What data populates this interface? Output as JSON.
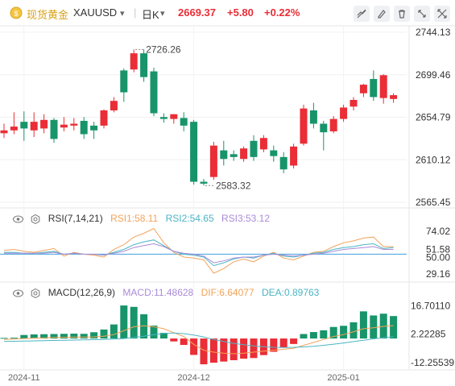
{
  "header": {
    "title": "现货黄金",
    "symbol": "XAUUSD",
    "symbol_dropdown": "▾",
    "period": "日K",
    "period_dropdown": "▾",
    "price": "2669.37",
    "change": "+5.80",
    "change_pct": "+0.22%"
  },
  "colors": {
    "up": "#ea2d36",
    "down": "#18946a",
    "blue_line": "#57a9e0",
    "orange_line": "#f3a35b",
    "purple_line": "#a98bd8"
  },
  "rsi": {
    "title": "RSI(7,14,21)",
    "rsi1": "RSI1:58.11",
    "rsi2": "RSI2:54.65",
    "rsi3": "RSI3:53.12"
  },
  "macd": {
    "title": "MACD(12,26,9)",
    "macd": "MACD:11.48628",
    "dif": "DIF:6.64077",
    "dea": "DEA:0.89763"
  },
  "chart_data": [
    {
      "type": "candlestick",
      "title": "",
      "y_ticks": [
        "2744.13",
        "2699.46",
        "2654.79",
        "2610.12",
        "2565.45"
      ],
      "ylim": [
        2565.45,
        2744.13
      ],
      "annotations": {
        "high": "2726.26",
        "low": "2583.32"
      },
      "x_ticks": [
        "2024-11",
        "2024-12",
        "2025-01"
      ],
      "candles": [
        {
          "o": 2638,
          "h": 2648,
          "c": 2641,
          "l": 2633
        },
        {
          "o": 2641,
          "h": 2660,
          "c": 2645,
          "l": 2637
        },
        {
          "o": 2650,
          "h": 2661,
          "c": 2643,
          "l": 2630
        },
        {
          "o": 2641,
          "h": 2660,
          "c": 2650,
          "l": 2634
        },
        {
          "o": 2643,
          "h": 2658,
          "c": 2652,
          "l": 2638
        },
        {
          "o": 2652,
          "h": 2654,
          "c": 2632,
          "l": 2628
        },
        {
          "o": 2644,
          "h": 2655,
          "c": 2647,
          "l": 2640
        },
        {
          "o": 2646,
          "h": 2654,
          "c": 2648,
          "l": 2641
        },
        {
          "o": 2651,
          "h": 2655,
          "c": 2637,
          "l": 2632
        },
        {
          "o": 2646,
          "h": 2650,
          "c": 2641,
          "l": 2632
        },
        {
          "o": 2646,
          "h": 2663,
          "c": 2662,
          "l": 2643
        },
        {
          "o": 2662,
          "h": 2676,
          "c": 2672,
          "l": 2660
        },
        {
          "o": 2704,
          "h": 2706,
          "c": 2681,
          "l": 2671
        },
        {
          "o": 2705,
          "h": 2726,
          "c": 2722,
          "l": 2702
        },
        {
          "o": 2722,
          "h": 2726,
          "c": 2697,
          "l": 2692
        },
        {
          "o": 2703,
          "h": 2707,
          "c": 2659,
          "l": 2656
        },
        {
          "o": 2655,
          "h": 2659,
          "c": 2653,
          "l": 2649
        },
        {
          "o": 2653,
          "h": 2658,
          "c": 2658,
          "l": 2648
        },
        {
          "o": 2654,
          "h": 2660,
          "c": 2646,
          "l": 2640
        },
        {
          "o": 2650,
          "h": 2652,
          "c": 2587,
          "l": 2584
        },
        {
          "o": 2587,
          "h": 2590,
          "c": 2585,
          "l": 2583
        },
        {
          "o": 2592,
          "h": 2629,
          "c": 2625,
          "l": 2589
        },
        {
          "o": 2620,
          "h": 2630,
          "c": 2611,
          "l": 2604
        },
        {
          "o": 2616,
          "h": 2620,
          "c": 2613,
          "l": 2609
        },
        {
          "o": 2611,
          "h": 2624,
          "c": 2622,
          "l": 2608
        },
        {
          "o": 2630,
          "h": 2636,
          "c": 2613,
          "l": 2609
        },
        {
          "o": 2621,
          "h": 2636,
          "c": 2633,
          "l": 2618
        },
        {
          "o": 2620,
          "h": 2625,
          "c": 2614,
          "l": 2608
        },
        {
          "o": 2613,
          "h": 2618,
          "c": 2600,
          "l": 2596
        },
        {
          "o": 2604,
          "h": 2627,
          "c": 2624,
          "l": 2601
        },
        {
          "o": 2627,
          "h": 2668,
          "c": 2664,
          "l": 2625
        },
        {
          "o": 2662,
          "h": 2670,
          "c": 2648,
          "l": 2643
        },
        {
          "o": 2648,
          "h": 2651,
          "c": 2639,
          "l": 2620
        },
        {
          "o": 2640,
          "h": 2656,
          "c": 2653,
          "l": 2638
        },
        {
          "o": 2653,
          "h": 2668,
          "c": 2665,
          "l": 2650
        },
        {
          "o": 2666,
          "h": 2676,
          "c": 2673,
          "l": 2662
        },
        {
          "o": 2680,
          "h": 2690,
          "c": 2689,
          "l": 2676
        },
        {
          "o": 2695,
          "h": 2704,
          "c": 2676,
          "l": 2672
        },
        {
          "o": 2675,
          "h": 2700,
          "c": 2699,
          "l": 2669
        },
        {
          "o": 2674,
          "h": 2680,
          "c": 2678,
          "l": 2670
        }
      ]
    },
    {
      "type": "line",
      "title": "RSI(7,14,21)",
      "y_ticks": [
        "74.02",
        "51.58",
        "50.00",
        "29.16"
      ],
      "ylim": [
        25,
        80
      ],
      "series": [
        {
          "name": "RSI1",
          "values": [
            54,
            55,
            53,
            52,
            54,
            56,
            48,
            52,
            50,
            49,
            47,
            55,
            60,
            68,
            72,
            77,
            62,
            52,
            47,
            46,
            44,
            30,
            35,
            42,
            45,
            42,
            48,
            52,
            46,
            44,
            48,
            52,
            53,
            58,
            62,
            64,
            67,
            68,
            58,
            58
          ]
        },
        {
          "name": "RSI2",
          "values": [
            52,
            52,
            51,
            51,
            52,
            53,
            50,
            51,
            50,
            50,
            49,
            52,
            55,
            60,
            63,
            65,
            59,
            53,
            50,
            49,
            47,
            38,
            41,
            45,
            47,
            46,
            49,
            51,
            48,
            47,
            49,
            51,
            52,
            55,
            57,
            58,
            60,
            61,
            56,
            57
          ]
        },
        {
          "name": "RSI3",
          "values": [
            51,
            51,
            51,
            51,
            51,
            52,
            50,
            51,
            50,
            50,
            49,
            51,
            53,
            57,
            59,
            61,
            58,
            53,
            51,
            50,
            48,
            41,
            43,
            46,
            47,
            47,
            49,
            50,
            49,
            48,
            49,
            50,
            51,
            53,
            55,
            56,
            57,
            58,
            55,
            55
          ]
        }
      ]
    },
    {
      "type": "bar",
      "title": "MACD(12,26,9)",
      "y_ticks": [
        "16.70110",
        "2.22285",
        "-12.25539"
      ],
      "ylim": [
        -14,
        19
      ],
      "series": [
        {
          "name": "MACD",
          "values": [
            0.3,
            0.4,
            1.8,
            2.1,
            2.2,
            2.3,
            2.4,
            2.5,
            2.4,
            3.2,
            4.6,
            7.2,
            16.9,
            16.2,
            12.4,
            6.6,
            2.9,
            -1.5,
            -3.3,
            -8.4,
            -13.2,
            -12.4,
            -11.8,
            -11.1,
            -10.3,
            -10.0,
            -8.5,
            -6.8,
            -4.7,
            -2.8,
            2.3,
            3.3,
            4.2,
            5.9,
            6.5,
            8.3,
            13.9,
            11.8,
            12.7,
            11.5
          ]
        },
        {
          "name": "DIF",
          "values": [
            -0.5,
            -0.3,
            0,
            0.2,
            0.3,
            0.5,
            0.6,
            0.7,
            0.7,
            0.8,
            1.2,
            2,
            4,
            6,
            6.5,
            6,
            5,
            3,
            1,
            -3,
            -6,
            -7,
            -7.5,
            -7.8,
            -7.5,
            -7,
            -6.5,
            -6,
            -5.5,
            -5,
            -3.5,
            -2,
            -0.5,
            1,
            2,
            3.5,
            5,
            5.5,
            6.2,
            6.6
          ]
        },
        {
          "name": "DEA",
          "values": [
            -1.5,
            -1.4,
            -1.3,
            -1.2,
            -1.1,
            -1.0,
            -0.9,
            -0.8,
            -0.7,
            -0.6,
            -0.5,
            -0.3,
            0,
            0.5,
            1.2,
            2,
            2.6,
            2.8,
            2.5,
            1.8,
            0.8,
            -0.5,
            -1.5,
            -2.5,
            -3.2,
            -3.8,
            -4.2,
            -4.5,
            -4.6,
            -4.5,
            -4.3,
            -4,
            -3.5,
            -2.9,
            -2.3,
            -1.6,
            -0.9,
            -0.2,
            0.4,
            0.9
          ]
        }
      ]
    }
  ]
}
